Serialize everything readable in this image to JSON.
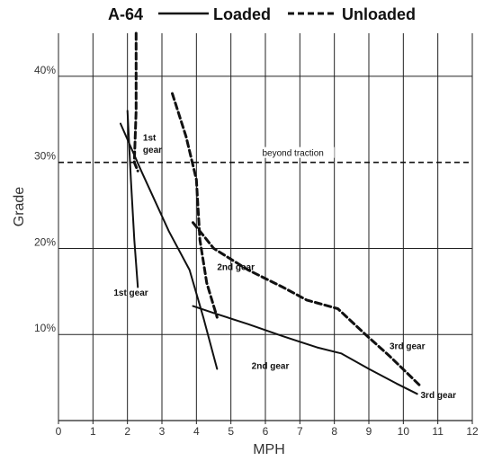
{
  "chart_data": {
    "type": "line",
    "title": "A-64",
    "xlabel": "MPH",
    "ylabel": "Grade",
    "xlim": [
      0,
      12
    ],
    "ylim": [
      0,
      45
    ],
    "x_ticks": [
      "0",
      "1",
      "2",
      "3",
      "4",
      "5",
      "6",
      "7",
      "8",
      "9",
      "10",
      "11",
      "12"
    ],
    "y_ticks": [
      {
        "value": 10,
        "label": "10%"
      },
      {
        "value": 20,
        "label": "20%"
      },
      {
        "value": 30,
        "label": "30%"
      },
      {
        "value": 40,
        "label": "40%"
      }
    ],
    "grid": true,
    "legend": [
      {
        "label": "Loaded",
        "style": "solid"
      },
      {
        "label": "Unloaded",
        "style": "dashed"
      }
    ],
    "series": [
      {
        "name": "Loaded",
        "style": "solid",
        "gear": "1st gear",
        "points": [
          [
            2.0,
            36
          ],
          [
            2.1,
            28
          ],
          [
            2.2,
            21
          ],
          [
            2.3,
            15.5
          ]
        ]
      },
      {
        "name": "Loaded",
        "style": "solid",
        "gear": "1st gear",
        "points": [
          [
            1.8,
            34.5
          ],
          [
            2.4,
            29
          ],
          [
            3.2,
            22
          ],
          [
            3.8,
            17.5
          ],
          [
            4.2,
            12
          ],
          [
            4.6,
            6
          ]
        ]
      },
      {
        "name": "Loaded",
        "style": "solid",
        "gear": "2nd gear",
        "points": [
          [
            3.9,
            13.3
          ],
          [
            4.5,
            12.5
          ],
          [
            5.5,
            11.2
          ],
          [
            6.5,
            9.8
          ],
          [
            7.5,
            8.5
          ],
          [
            8.2,
            7.8
          ],
          [
            9.0,
            6.0
          ],
          [
            9.8,
            4.3
          ],
          [
            10.4,
            3.1
          ]
        ]
      },
      {
        "name": "Unloaded",
        "style": "dashed",
        "gear": "1st gear",
        "points": [
          [
            2.25,
            45
          ],
          [
            2.25,
            36
          ],
          [
            2.2,
            30
          ],
          [
            2.3,
            29
          ]
        ]
      },
      {
        "name": "Unloaded",
        "style": "dashed",
        "gear": "2nd gear",
        "points": [
          [
            3.3,
            38
          ],
          [
            3.7,
            33
          ],
          [
            4.0,
            28
          ],
          [
            4.1,
            21
          ],
          [
            4.3,
            16
          ],
          [
            4.6,
            12
          ]
        ]
      },
      {
        "name": "Unloaded",
        "style": "dashed",
        "gear": "2nd gear",
        "points": [
          [
            3.9,
            23
          ],
          [
            4.5,
            20
          ],
          [
            5.5,
            17.5
          ],
          [
            6.5,
            15.5
          ],
          [
            7.2,
            14
          ],
          [
            8.1,
            13
          ],
          [
            8.9,
            10
          ],
          [
            9.6,
            7.5
          ],
          [
            10.5,
            4
          ]
        ]
      }
    ],
    "annotations": [
      {
        "text": "beyond traction",
        "style": "dashed reference line",
        "y": 30
      },
      {
        "text": "1st",
        "x": 2.45,
        "y": 32.5
      },
      {
        "text": "gear",
        "x": 2.45,
        "y": 31.1
      },
      {
        "text": "1st gear",
        "x": 1.6,
        "y": 14.5
      },
      {
        "text": "2nd gear",
        "x": 4.6,
        "y": 17.5
      },
      {
        "text": "2nd gear",
        "x": 5.6,
        "y": 6.0
      },
      {
        "text": "3rd gear",
        "x": 9.6,
        "y": 8.3
      },
      {
        "text": "3rd gear",
        "x": 10.5,
        "y": 2.6
      }
    ]
  }
}
